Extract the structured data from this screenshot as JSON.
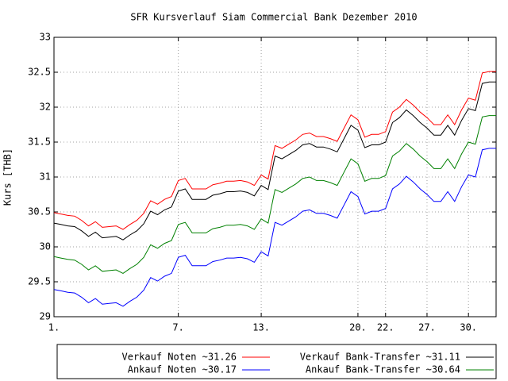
{
  "chart_data": {
    "type": "line",
    "title": "SFR Kursverlauf Siam Commercial Bank Dezember 2010",
    "y_label": "Kurs [THB]",
    "categories": [
      "1.",
      null,
      null,
      null,
      null,
      null,
      null,
      null,
      null,
      null,
      null,
      null,
      null,
      null,
      null,
      null,
      null,
      null,
      "7.",
      null,
      null,
      null,
      null,
      null,
      null,
      null,
      null,
      null,
      null,
      null,
      "13.",
      null,
      null,
      null,
      null,
      null,
      null,
      null,
      null,
      null,
      null,
      null,
      null,
      null,
      "20.",
      null,
      null,
      null,
      "22.",
      null,
      null,
      null,
      null,
      null,
      "27.",
      null,
      null,
      null,
      null,
      null,
      "30.",
      null,
      null,
      null,
      null
    ],
    "series": [
      {
        "name": "Verkauf Noten ~31.26",
        "color": "#ff0000",
        "values": [
          30.49,
          30.47,
          30.45,
          30.44,
          30.38,
          30.3,
          30.36,
          30.28,
          30.29,
          30.3,
          30.25,
          30.32,
          30.38,
          30.48,
          30.66,
          30.61,
          30.68,
          30.72,
          30.95,
          30.98,
          30.83,
          30.83,
          30.83,
          30.89,
          30.91,
          30.94,
          30.94,
          30.95,
          30.93,
          30.88,
          31.03,
          30.97,
          31.45,
          31.41,
          31.47,
          31.53,
          31.61,
          31.63,
          31.58,
          31.58,
          31.55,
          31.51,
          31.7,
          31.89,
          31.82,
          31.57,
          31.61,
          31.61,
          31.65,
          31.93,
          32.0,
          32.11,
          32.03,
          31.93,
          31.85,
          31.75,
          31.75,
          31.89,
          31.75,
          31.96,
          32.13,
          32.1,
          32.49,
          32.51,
          32.51
        ]
      },
      {
        "name": "Verkauf Bank-Transfer ~31.11",
        "color": "#000000",
        "values": [
          30.34,
          30.32,
          30.3,
          30.29,
          30.23,
          30.15,
          30.21,
          30.13,
          30.14,
          30.15,
          30.1,
          30.17,
          30.23,
          30.33,
          30.51,
          30.46,
          30.53,
          30.57,
          30.8,
          30.83,
          30.68,
          30.68,
          30.68,
          30.74,
          30.76,
          30.79,
          30.79,
          30.8,
          30.78,
          30.73,
          30.88,
          30.82,
          31.3,
          31.26,
          31.32,
          31.38,
          31.46,
          31.48,
          31.43,
          31.43,
          31.4,
          31.36,
          31.55,
          31.74,
          31.67,
          31.42,
          31.46,
          31.46,
          31.5,
          31.78,
          31.85,
          31.96,
          31.88,
          31.78,
          31.7,
          31.6,
          31.6,
          31.74,
          31.6,
          31.81,
          31.98,
          31.95,
          32.34,
          32.36,
          32.36
        ]
      },
      {
        "name": "Ankauf Noten ~30.17",
        "color": "#0000ff",
        "values": [
          29.39,
          29.37,
          29.35,
          29.34,
          29.28,
          29.2,
          29.26,
          29.18,
          29.19,
          29.2,
          29.15,
          29.22,
          29.28,
          29.38,
          29.56,
          29.51,
          29.58,
          29.62,
          29.85,
          29.88,
          29.73,
          29.73,
          29.73,
          29.79,
          29.81,
          29.84,
          29.84,
          29.85,
          29.83,
          29.78,
          29.93,
          29.87,
          30.35,
          30.31,
          30.37,
          30.43,
          30.51,
          30.53,
          30.48,
          30.48,
          30.45,
          30.41,
          30.6,
          30.79,
          30.72,
          30.47,
          30.51,
          30.51,
          30.55,
          30.83,
          30.9,
          31.01,
          30.93,
          30.83,
          30.75,
          30.65,
          30.65,
          30.79,
          30.65,
          30.86,
          31.03,
          31.0,
          31.39,
          31.41,
          31.41
        ]
      },
      {
        "name": "Ankauf Bank-Transfer ~30.64",
        "color": "#008000",
        "values": [
          29.86,
          29.84,
          29.82,
          29.81,
          29.75,
          29.67,
          29.73,
          29.65,
          29.66,
          29.67,
          29.62,
          29.69,
          29.75,
          29.85,
          30.03,
          29.98,
          30.05,
          30.09,
          30.32,
          30.35,
          30.2,
          30.2,
          30.2,
          30.26,
          30.28,
          30.31,
          30.31,
          30.32,
          30.3,
          30.25,
          30.4,
          30.34,
          30.82,
          30.78,
          30.84,
          30.9,
          30.98,
          31.0,
          30.95,
          30.95,
          30.92,
          30.88,
          31.07,
          31.26,
          31.19,
          30.94,
          30.98,
          30.98,
          31.02,
          31.3,
          31.37,
          31.48,
          31.4,
          31.3,
          31.22,
          31.12,
          31.12,
          31.26,
          31.12,
          31.33,
          31.5,
          31.47,
          31.86,
          31.88,
          31.88
        ]
      }
    ],
    "ylim": [
      29,
      33
    ],
    "yticks": [
      29,
      29.5,
      30,
      30.5,
      31,
      31.5,
      32,
      32.5,
      33
    ],
    "grid": true
  }
}
